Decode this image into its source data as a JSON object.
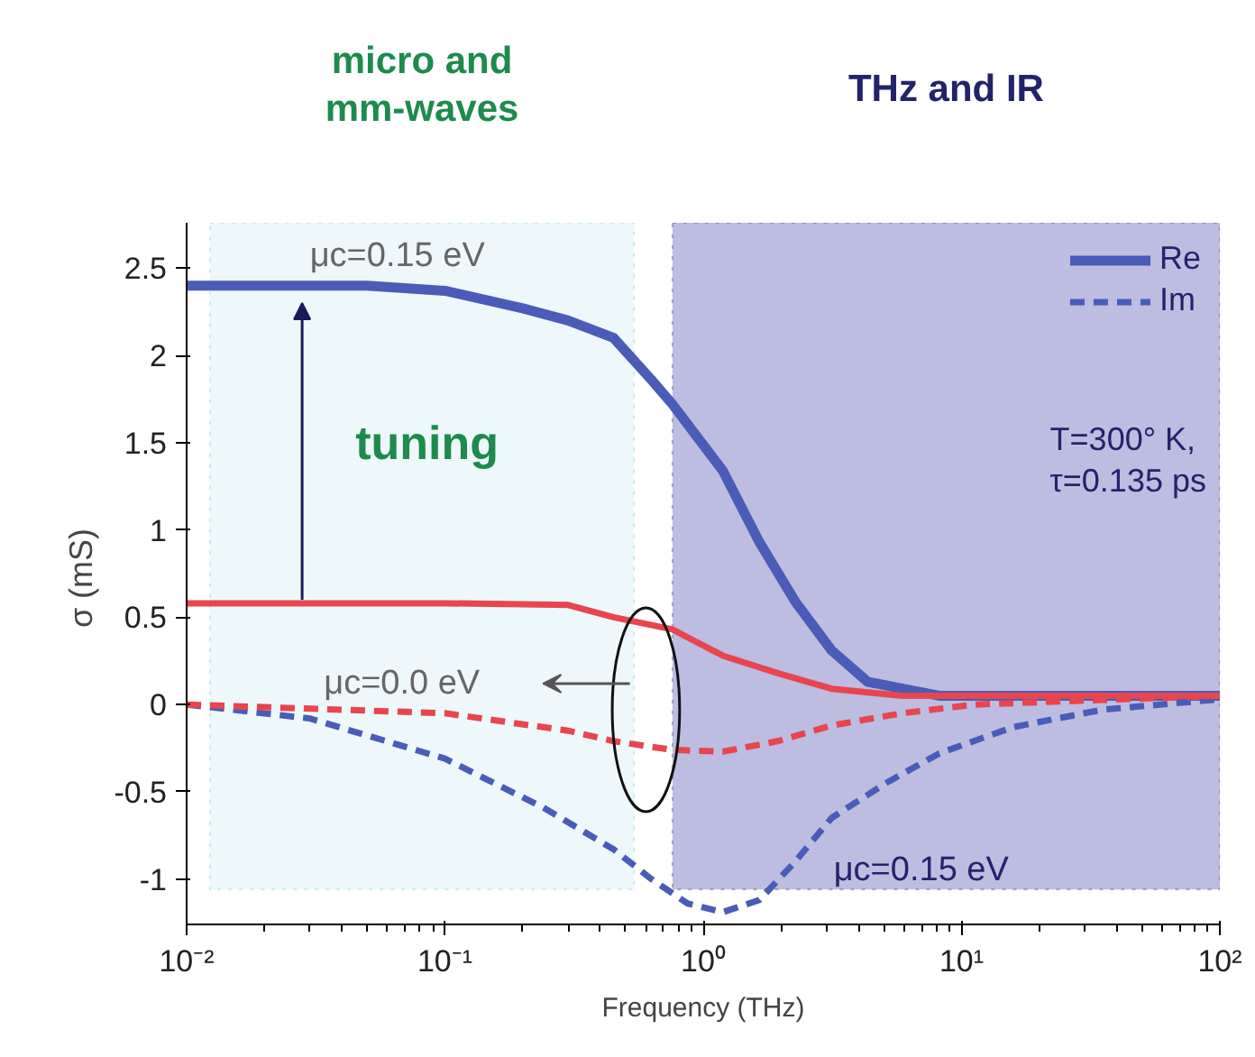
{
  "chart_data": {
    "type": "line",
    "xlabel": "Frequency (THz)",
    "ylabel": "σ  (mS)",
    "log": "x",
    "xlim": [
      0.01,
      100
    ],
    "ylim": [
      -1.26,
      2.76
    ],
    "xticks": [
      {
        "value": 0.01,
        "label": "10⁻²"
      },
      {
        "value": 0.1,
        "label": "10⁻¹"
      },
      {
        "value": 1,
        "label": "10⁰"
      },
      {
        "value": 10,
        "label": "10¹"
      },
      {
        "value": 100,
        "label": "10²"
      }
    ],
    "yticks": [
      -1,
      -0.5,
      0,
      0.5,
      1,
      1.5,
      2,
      2.5
    ],
    "grid": false,
    "legend": "top right",
    "series": [
      {
        "name": "Re",
        "color": "#4a5cb8",
        "line_style": "solid",
        "x": [
          0.01,
          0.05,
          0.1,
          0.2,
          0.3,
          0.45,
          0.63,
          0.76,
          1.19,
          1.65,
          2.27,
          3.14,
          4.33,
          8.2,
          20,
          100
        ],
        "values": [
          2.4,
          2.4,
          2.37,
          2.27,
          2.2,
          2.1,
          1.86,
          1.72,
          1.34,
          0.93,
          0.59,
          0.31,
          0.13,
          0.05,
          0.05,
          0.05
        ]
      },
      {
        "name": "Im",
        "color": "#4a5cb8",
        "line_style": "dashed",
        "x": [
          0.01,
          0.03,
          0.1,
          0.24,
          0.45,
          0.63,
          0.87,
          1.19,
          1.65,
          2.27,
          3.14,
          5.1,
          8.2,
          15.8,
          35,
          100
        ],
        "values": [
          0,
          -0.08,
          -0.31,
          -0.59,
          -0.83,
          -1.0,
          -1.14,
          -1.19,
          -1.12,
          -0.9,
          -0.65,
          -0.45,
          -0.28,
          -0.13,
          -0.03,
          0.03
        ]
      },
      {
        "color": "#e8454f",
        "line_style": "solid",
        "x": [
          0.01,
          0.1,
          0.3,
          0.45,
          0.76,
          1.19,
          1.94,
          3.14,
          5.9,
          100
        ],
        "values": [
          0.58,
          0.58,
          0.57,
          0.5,
          0.43,
          0.28,
          0.18,
          0.09,
          0.05,
          0.05
        ]
      },
      {
        "color": "#e8454f",
        "line_style": "dashed",
        "x": [
          0.01,
          0.1,
          0.3,
          0.45,
          0.76,
          1.19,
          1.94,
          3.14,
          5.9,
          11.3,
          100
        ],
        "values": [
          0,
          -0.05,
          -0.15,
          -0.21,
          -0.26,
          -0.27,
          -0.21,
          -0.12,
          -0.05,
          0.0,
          0.05
        ]
      }
    ],
    "bands": [
      {
        "axis": "x",
        "from": 0.0123,
        "to": 0.54,
        "label": "micro and\nmm-waves",
        "color": "#eef7fa"
      },
      {
        "axis": "x",
        "from": 0.76,
        "to": 100,
        "label": "THz and IR",
        "color": "#bcbde0"
      }
    ],
    "annotations": [
      {
        "text": "μc=0.15 eV",
        "x": 0.03,
        "y": 2.4
      },
      "tuning",
      "μc=0.0 eV",
      "μc=0.15 eV",
      "T=300° K,",
      "τ=0.135 ps"
    ]
  }
}
